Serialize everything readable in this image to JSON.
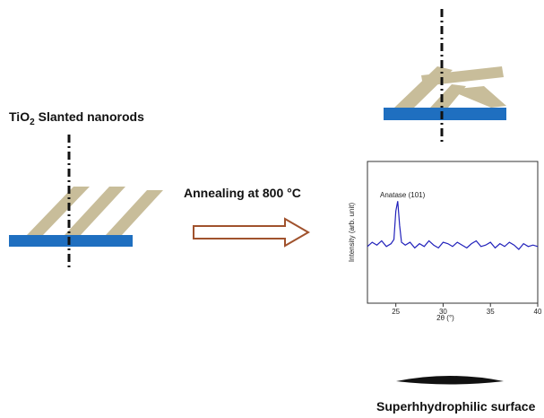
{
  "labels": {
    "left_title": {
      "main": "TiO",
      "sub": "2",
      "rest": "Slanted nanorods"
    },
    "process": "Annealing at 800 °C",
    "result": "Superhhydrophilic surface"
  },
  "chart_data": {
    "type": "line",
    "xlabel": "2θ (°)",
    "ylabel": "Intensity (arb. unit)",
    "annotation": "Anatase (101)",
    "color": "#2222bb",
    "xlim": [
      22,
      40
    ],
    "ylim": [
      0,
      10
    ],
    "xticks": [
      25,
      30,
      35,
      40
    ],
    "x": [
      22,
      22.5,
      23,
      23.5,
      24,
      24.5,
      24.8,
      25.0,
      25.2,
      25.4,
      25.6,
      26,
      26.5,
      27,
      27.5,
      28,
      28.5,
      29,
      29.5,
      30,
      30.5,
      31,
      31.5,
      32,
      32.5,
      33,
      33.5,
      34,
      34.5,
      35,
      35.5,
      36,
      36.5,
      37,
      37.5,
      38,
      38.5,
      39,
      39.5,
      40
    ],
    "values": [
      4.0,
      4.3,
      4.1,
      4.4,
      4.0,
      4.2,
      4.5,
      6.5,
      7.2,
      5.5,
      4.3,
      4.1,
      4.3,
      3.9,
      4.2,
      4.0,
      4.4,
      4.1,
      3.9,
      4.3,
      4.2,
      4.0,
      4.3,
      4.1,
      3.9,
      4.2,
      4.4,
      4.0,
      4.1,
      4.3,
      3.9,
      4.2,
      4.0,
      4.3,
      4.1,
      3.8,
      4.2,
      4.0,
      4.1,
      4.0
    ]
  }
}
